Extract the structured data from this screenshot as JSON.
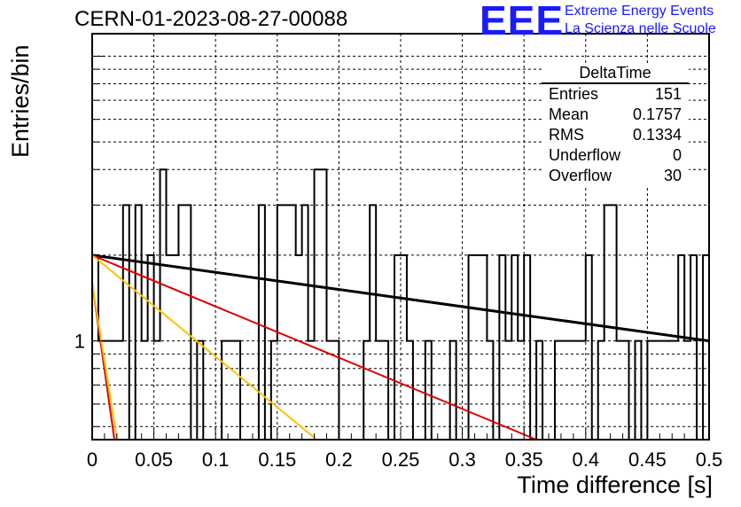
{
  "title": "CERN-01-2023-08-27-00088",
  "logo": {
    "letters": "EEE",
    "line1": "Extreme Energy Events",
    "line2": "La Scienza nelle Scuole"
  },
  "stats_box": {
    "title": "DeltaTime",
    "rows": [
      {
        "label": "Entries",
        "value": "151"
      },
      {
        "label": "Mean",
        "value": "0.1757"
      },
      {
        "label": "RMS",
        "value": "0.1334"
      },
      {
        "label": "Underflow",
        "value": "0"
      },
      {
        "label": "Overflow",
        "value": "30"
      }
    ]
  },
  "chart_data": {
    "type": "line",
    "title": "CERN-01-2023-08-27-00088",
    "xlabel": "Time difference [s]",
    "ylabel": "Entries/bin",
    "xlim": [
      0,
      0.5
    ],
    "ylim": [
      0.45,
      12
    ],
    "yscale": "log",
    "grid": true,
    "x_ticks": [
      "0",
      "0.05",
      "0.1",
      "0.15",
      "0.2",
      "0.25",
      "0.3",
      "0.35",
      "0.4",
      "0.45",
      "0.5"
    ],
    "y_ticks": [
      "1"
    ],
    "histogram": {
      "name": "DeltaTime",
      "color": "#000000",
      "bin_width": 0.005,
      "counts": [
        2,
        1,
        1,
        1,
        1,
        3,
        0,
        3,
        1,
        2,
        1,
        4,
        2,
        2,
        3,
        3,
        0,
        1,
        0,
        0,
        0,
        1,
        1,
        1,
        0,
        0,
        0,
        3,
        0,
        1,
        3,
        3,
        3,
        2,
        3,
        1,
        4,
        4,
        1,
        1,
        0,
        0,
        0,
        0,
        1,
        3,
        1,
        1,
        0,
        2,
        2,
        1,
        0,
        0,
        1,
        0,
        0,
        0,
        1,
        0,
        0,
        2,
        2,
        2,
        1,
        0,
        2,
        1,
        2,
        1,
        2,
        0,
        1,
        0,
        0,
        1,
        1,
        1,
        1,
        1,
        2,
        0,
        1,
        3,
        3,
        1,
        1,
        0,
        1,
        0,
        1,
        1,
        1,
        1,
        1,
        2,
        1,
        2,
        0,
        2,
        1,
        1,
        0,
        1,
        1,
        1,
        2,
        1,
        1,
        2,
        2,
        1,
        0,
        0,
        0,
        0,
        1,
        0,
        0,
        0,
        0,
        0,
        0,
        0,
        0,
        0,
        1,
        0,
        0,
        1,
        0,
        0,
        1,
        0,
        0,
        1,
        0,
        0,
        0,
        0,
        0,
        0,
        0,
        0,
        0,
        1,
        1,
        0,
        0,
        1,
        0,
        0,
        0,
        0,
        0,
        0,
        0,
        0,
        0,
        0,
        0,
        0,
        0,
        1,
        0,
        0,
        1,
        0,
        0,
        0,
        0,
        0,
        0,
        0,
        0,
        0,
        1,
        0,
        0,
        0,
        1,
        0,
        1,
        0,
        0,
        1,
        2,
        2,
        2,
        1,
        2,
        0,
        0,
        0,
        1,
        2,
        2,
        1,
        0,
        0,
        1,
        1,
        1,
        0,
        0,
        0,
        1,
        1,
        1,
        0,
        0,
        1,
        0,
        0,
        0,
        1,
        0,
        0,
        1,
        0,
        1,
        1,
        0,
        0,
        1,
        2,
        1,
        0,
        0,
        1,
        2,
        1,
        0,
        0,
        1,
        1,
        0,
        0,
        1,
        0,
        0,
        0,
        2,
        2,
        0,
        0,
        0,
        2,
        1,
        0,
        0,
        1,
        0,
        0,
        0,
        0,
        0,
        0,
        1,
        0,
        0,
        0,
        0,
        0,
        0,
        0,
        0,
        0,
        0,
        0,
        0,
        0,
        0,
        0,
        0,
        0,
        0,
        0,
        0,
        0,
        0,
        0,
        0,
        0,
        1,
        1,
        0,
        0,
        0,
        0,
        0,
        0,
        0,
        0,
        0,
        0,
        0,
        0,
        0,
        0,
        0,
        0,
        0,
        0,
        0,
        0,
        0,
        0,
        0,
        1,
        0,
        0,
        2,
        2,
        1,
        0,
        0,
        0,
        0,
        1,
        0,
        0,
        0,
        1,
        1,
        0,
        0,
        1,
        0,
        0,
        0,
        2,
        2,
        0,
        0,
        1,
        0,
        0,
        1,
        1,
        1,
        1,
        2,
        3,
        1,
        0,
        0,
        0,
        0,
        1,
        0,
        0,
        1,
        0,
        0,
        1,
        0,
        0,
        0,
        1,
        0,
        0,
        1,
        0,
        0,
        1,
        0,
        0,
        1,
        0,
        0,
        1,
        0,
        0,
        1,
        1,
        0,
        1,
        0,
        0,
        1,
        0,
        0,
        1,
        0,
        0,
        1,
        1,
        1,
        0,
        0,
        1,
        0,
        0,
        1,
        0,
        0,
        1,
        1,
        1,
        0,
        1,
        0,
        1,
        1,
        1,
        0,
        0,
        1,
        0,
        0,
        1,
        1,
        0,
        0,
        1,
        3,
        0,
        0,
        1,
        0,
        0,
        1,
        0,
        0,
        1,
        0,
        0,
        1,
        2,
        0,
        0,
        1,
        0,
        0,
        1,
        1,
        1,
        1,
        0,
        0,
        1,
        0,
        0,
        1,
        3,
        1,
        0,
        1,
        0,
        1,
        1,
        0,
        0
      ]
    },
    "fits": [
      {
        "color": "#000000",
        "points": [
          [
            0.0,
            2.0
          ],
          [
            0.5,
            1.0
          ]
        ]
      },
      {
        "color": "#e00000",
        "points": [
          [
            0.0,
            2.0
          ],
          [
            0.36,
            0.45
          ]
        ]
      },
      {
        "color": "#ffc000",
        "points": [
          [
            0.0,
            2.0
          ],
          [
            0.182,
            0.45
          ]
        ]
      },
      {
        "color": "#e00000",
        "points": [
          [
            0.0,
            1.6
          ],
          [
            0.018,
            0.45
          ]
        ]
      },
      {
        "color": "#ffc000",
        "points": [
          [
            0.0,
            1.6
          ],
          [
            0.02,
            0.45
          ]
        ]
      }
    ]
  }
}
